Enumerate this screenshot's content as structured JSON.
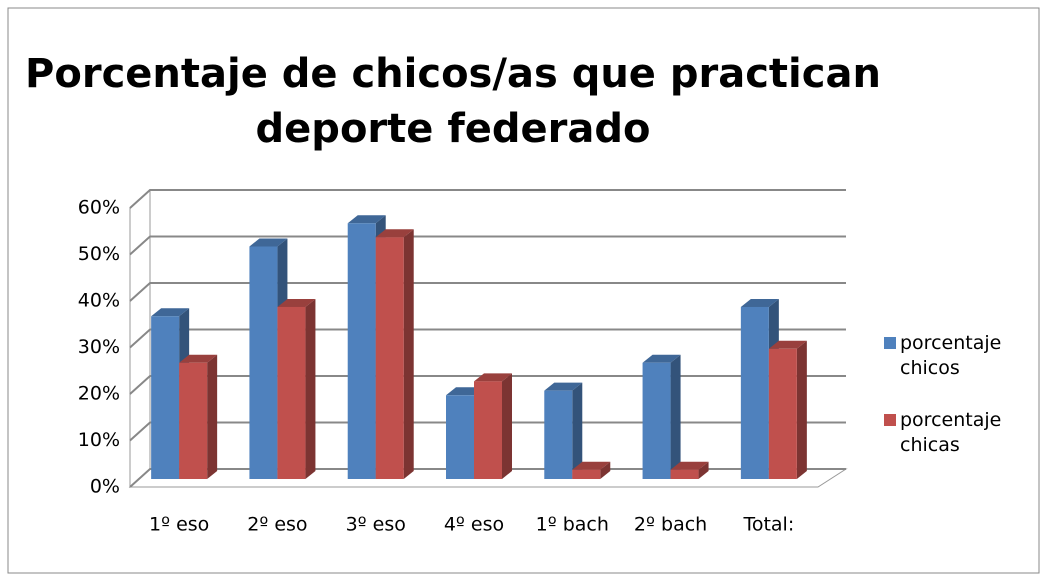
{
  "chart_data": {
    "type": "bar3d",
    "title": "Porcentaje de chicos/as que practican deporte federado",
    "categories": [
      "1º eso",
      "2º eso",
      "3º eso",
      "4º eso",
      "1º bach",
      "2º bach",
      "Total:"
    ],
    "series": [
      {
        "name": "porcentaje chicos",
        "color": "#4f81bd",
        "values": [
          35,
          50,
          55,
          18,
          19,
          25,
          37
        ]
      },
      {
        "name": "porcentaje chicas",
        "color": "#c0504d",
        "values": [
          25,
          37,
          52,
          21,
          2,
          2,
          28
        ]
      }
    ],
    "ylim": [
      0,
      60
    ],
    "yticks": [
      {
        "value": 0,
        "label": "0%"
      },
      {
        "value": 10,
        "label": "10%"
      },
      {
        "value": 20,
        "label": "20%"
      },
      {
        "value": 30,
        "label": "30%"
      },
      {
        "value": 40,
        "label": "40%"
      },
      {
        "value": 50,
        "label": "50%"
      },
      {
        "value": 60,
        "label": "60%"
      }
    ],
    "grid": true
  }
}
